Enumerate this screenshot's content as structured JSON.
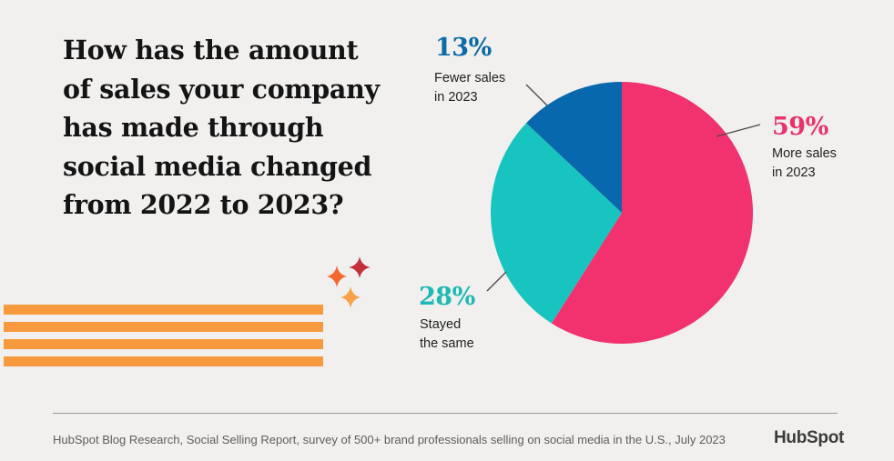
{
  "title": "How has the amount of sales your company has made through social media changed from 2022 to 2023?",
  "chart_data": {
    "type": "pie",
    "title": "How has the amount of sales your company has made through social media changed from 2022 to 2023?",
    "slices": [
      {
        "label_line1": "More sales",
        "label_line2": "in 2023",
        "value": 59,
        "pct": "59%",
        "color": "#f2326e"
      },
      {
        "label_line1": "Stayed",
        "label_line2": "the same",
        "value": 28,
        "pct": "28%",
        "color": "#18c4c0"
      },
      {
        "label_line1": "Fewer sales",
        "label_line2": "in 2023",
        "value": 13,
        "pct": "13%",
        "color": "#0868ae"
      }
    ]
  },
  "colors": {
    "pct_more": "#e8336b",
    "pct_same": "#1eb9b4",
    "pct_fewer": "#0c6aa6",
    "stripes": "#f79a3e",
    "background": "#f1f0ee"
  },
  "footer": {
    "source": "HubSpot Blog Research, Social Selling Report, survey of 500+ brand professionals selling on social media in the U.S., July 2023",
    "brand": "HubSpot"
  }
}
